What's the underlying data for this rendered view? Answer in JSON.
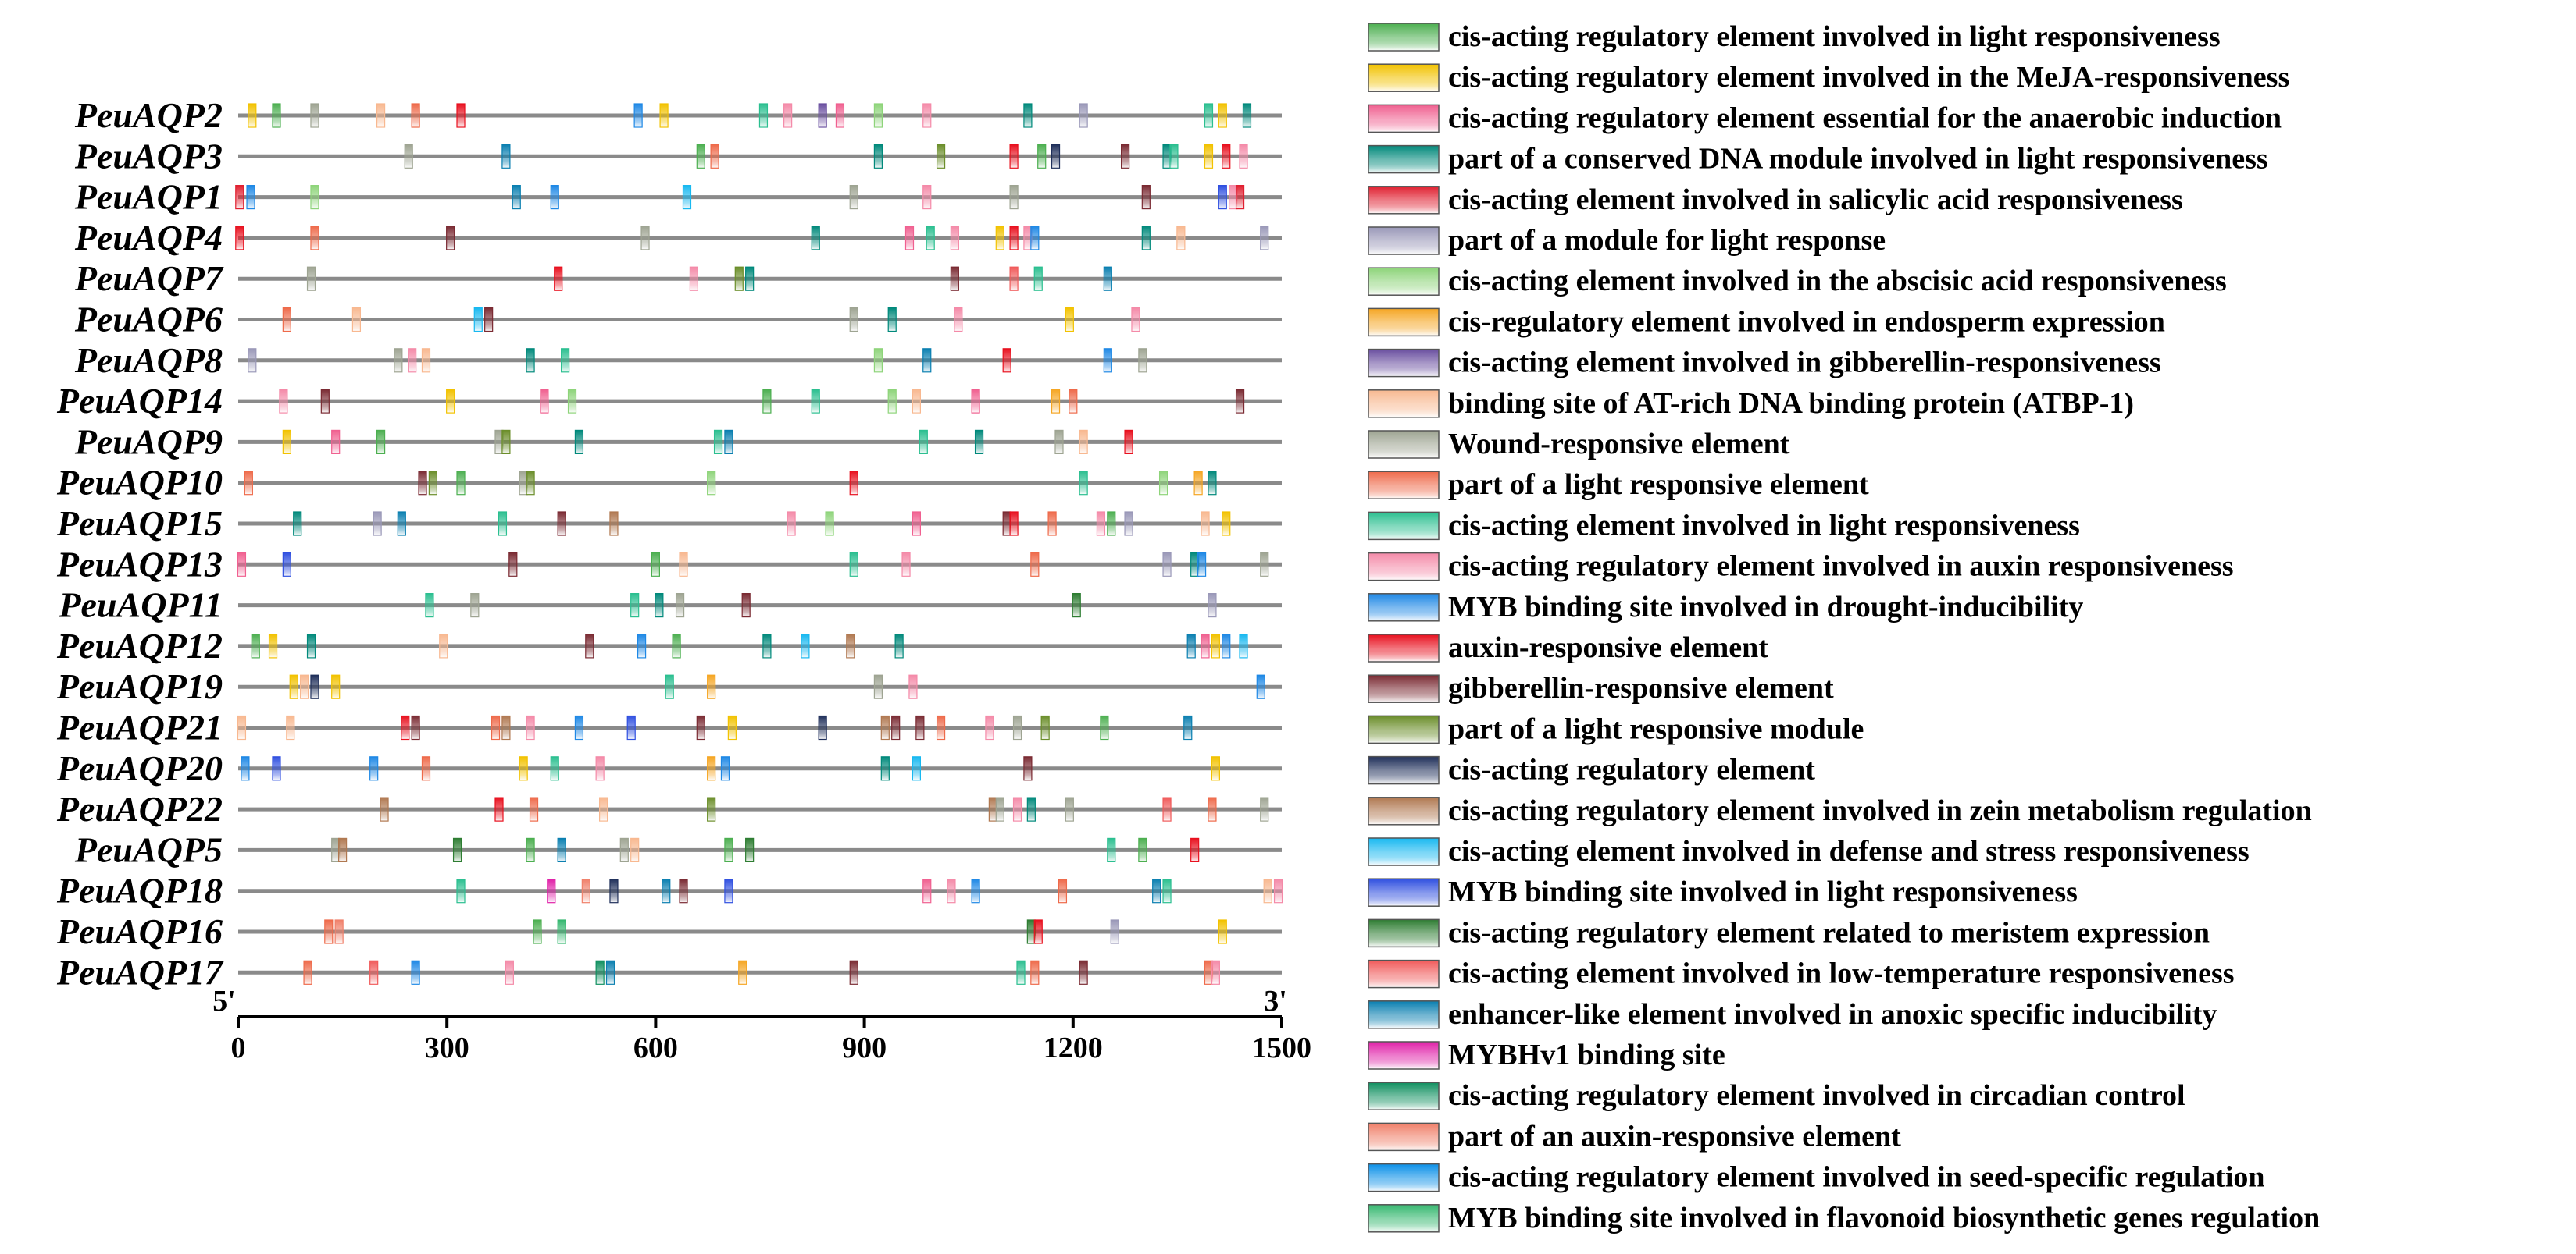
{
  "chart_data": {
    "type": "promoter-element-map",
    "title": "",
    "xlabel": "",
    "ylabel": "",
    "xlim": [
      0,
      1500
    ],
    "xticks": [
      0,
      300,
      600,
      900,
      1200,
      1500
    ],
    "end_labels": {
      "start": "5'",
      "end": "3'"
    },
    "genes": [
      "PeuAQP2",
      "PeuAQP3",
      "PeuAQP1",
      "PeuAQP4",
      "PeuAQP7",
      "PeuAQP6",
      "PeuAQP8",
      "PeuAQP14",
      "PeuAQP9",
      "PeuAQP10",
      "PeuAQP15",
      "PeuAQP13",
      "PeuAQP11",
      "PeuAQP12",
      "PeuAQP19",
      "PeuAQP21",
      "PeuAQP20",
      "PeuAQP22",
      "PeuAQP5",
      "PeuAQP18",
      "PeuAQP16",
      "PeuAQP17"
    ],
    "element_types": [
      {
        "name": "cis-acting regulatory element involved in light responsiveness",
        "color": "#4caf50"
      },
      {
        "name": "cis-acting regulatory element involved in the MeJA-responsiveness",
        "color": "#f2c200"
      },
      {
        "name": "cis-acting regulatory element essential for the anaerobic induction",
        "color": "#f06090"
      },
      {
        "name": "part of a conserved DNA module involved in light responsiveness",
        "color": "#00897b"
      },
      {
        "name": "cis-acting element involved in salicylic acid responsiveness",
        "color": "#e02030"
      },
      {
        "name": "part of a module for light response",
        "color": "#9a98b8"
      },
      {
        "name": "cis-acting element involved in the abscisic acid responsiveness",
        "color": "#8ed47a"
      },
      {
        "name": "cis-regulatory element involved in endosperm expression",
        "color": "#f5a623"
      },
      {
        "name": "cis-acting element involved in gibberellin-responsiveness",
        "color": "#6a4fa0"
      },
      {
        "name": "binding site of AT-rich DNA binding protein (ATBP-1)",
        "color": "#f8b890"
      },
      {
        "name": "Wound-responsive element",
        "color": "#9ea492"
      },
      {
        "name": "part of a light responsive element",
        "color": "#ee6a4a"
      },
      {
        "name": "cis-acting element involved in light responsiveness",
        "color": "#2bbf90"
      },
      {
        "name": "cis-acting regulatory element involved in auxin responsiveness",
        "color": "#f48aa8"
      },
      {
        "name": "MYB binding site involved in drought-inducibility",
        "color": "#1e88e5"
      },
      {
        "name": "auxin-responsive element",
        "color": "#e8101e"
      },
      {
        "name": "gibberellin-responsive element",
        "color": "#7a2a32"
      },
      {
        "name": "part of a light responsive module",
        "color": "#6b8e2a"
      },
      {
        "name": "cis-acting regulatory element",
        "color": "#1f2f5a"
      },
      {
        "name": "cis-acting regulatory element involved in zein metabolism regulation",
        "color": "#b07850"
      },
      {
        "name": "cis-acting element involved in defense and stress responsiveness",
        "color": "#18b8f0"
      },
      {
        "name": "MYB binding site involved in light responsiveness",
        "color": "#3050e0"
      },
      {
        "name": "cis-acting regulatory element related to meristem expression",
        "color": "#2e7d32"
      },
      {
        "name": "cis-acting element involved in low-temperature responsiveness",
        "color": "#f05a5a"
      },
      {
        "name": "enhancer-like element involved in anoxic specific inducibility",
        "color": "#0a7fb0"
      },
      {
        "name": "MYBHv1 binding site",
        "color": "#e020a8"
      },
      {
        "name": "cis-acting regulatory element involved in circadian control",
        "color": "#109060"
      },
      {
        "name": "part of an auxin-responsive element",
        "color": "#f0806a"
      },
      {
        "name": "cis-acting regulatory element involved in seed-specific regulation",
        "color": "#0a90e8"
      },
      {
        "name": "MYB binding site involved in flavonoid biosynthetic genes regulation",
        "color": "#36b870"
      }
    ],
    "elements": {
      "PeuAQP2": [
        [
          20,
          1
        ],
        [
          55,
          0
        ],
        [
          110,
          10
        ],
        [
          205,
          9
        ],
        [
          255,
          11
        ],
        [
          320,
          15
        ],
        [
          575,
          14
        ],
        [
          612,
          1
        ],
        [
          755,
          12
        ],
        [
          790,
          13
        ],
        [
          840,
          8
        ],
        [
          865,
          2
        ],
        [
          920,
          6
        ],
        [
          990,
          13
        ],
        [
          1135,
          3
        ],
        [
          1215,
          5
        ],
        [
          1395,
          12
        ],
        [
          1415,
          1
        ],
        [
          1450,
          3
        ]
      ],
      "PeuAQP3": [
        [
          245,
          10
        ],
        [
          385,
          24
        ],
        [
          665,
          0
        ],
        [
          685,
          11
        ],
        [
          920,
          3
        ],
        [
          1010,
          17
        ],
        [
          1115,
          15
        ],
        [
          1155,
          0
        ],
        [
          1175,
          18
        ],
        [
          1275,
          16
        ],
        [
          1335,
          3
        ],
        [
          1345,
          12
        ],
        [
          1395,
          1
        ],
        [
          1420,
          15
        ],
        [
          1445,
          13
        ]
      ],
      "PeuAQP1": [
        [
          2,
          4
        ],
        [
          18,
          14
        ],
        [
          110,
          6
        ],
        [
          400,
          24
        ],
        [
          455,
          14
        ],
        [
          645,
          20
        ],
        [
          885,
          10
        ],
        [
          990,
          13
        ],
        [
          1115,
          10
        ],
        [
          1305,
          16
        ],
        [
          1415,
          21
        ],
        [
          1430,
          13
        ],
        [
          1440,
          4
        ]
      ],
      "PeuAQP4": [
        [
          2,
          15
        ],
        [
          110,
          11
        ],
        [
          305,
          16
        ],
        [
          585,
          10
        ],
        [
          830,
          3
        ],
        [
          965,
          2
        ],
        [
          995,
          12
        ],
        [
          1030,
          13
        ],
        [
          1095,
          1
        ],
        [
          1115,
          15
        ],
        [
          1135,
          13
        ],
        [
          1145,
          14
        ],
        [
          1305,
          3
        ],
        [
          1355,
          9
        ],
        [
          1475,
          5
        ]
      ],
      "PeuAQP7": [
        [
          105,
          10
        ],
        [
          460,
          15
        ],
        [
          655,
          13
        ],
        [
          720,
          17
        ],
        [
          735,
          3
        ],
        [
          1030,
          16
        ],
        [
          1115,
          23
        ],
        [
          1150,
          12
        ],
        [
          1250,
          24
        ]
      ],
      "PeuAQP6": [
        [
          70,
          11
        ],
        [
          170,
          9
        ],
        [
          345,
          20
        ],
        [
          360,
          16
        ],
        [
          885,
          10
        ],
        [
          940,
          3
        ],
        [
          1035,
          13
        ],
        [
          1195,
          1
        ],
        [
          1290,
          13
        ]
      ],
      "PeuAQP8": [
        [
          20,
          5
        ],
        [
          230,
          10
        ],
        [
          250,
          13
        ],
        [
          270,
          9
        ],
        [
          420,
          3
        ],
        [
          470,
          12
        ],
        [
          920,
          6
        ],
        [
          990,
          24
        ],
        [
          1105,
          15
        ],
        [
          1250,
          14
        ],
        [
          1300,
          10
        ]
      ],
      "PeuAQP14": [
        [
          65,
          13
        ],
        [
          125,
          16
        ],
        [
          305,
          1
        ],
        [
          440,
          2
        ],
        [
          480,
          6
        ],
        [
          760,
          0
        ],
        [
          830,
          12
        ],
        [
          940,
          6
        ],
        [
          975,
          9
        ],
        [
          1060,
          2
        ],
        [
          1175,
          7
        ],
        [
          1200,
          11
        ],
        [
          1440,
          16
        ]
      ],
      "PeuAQP9": [
        [
          70,
          1
        ],
        [
          140,
          2
        ],
        [
          205,
          0
        ],
        [
          375,
          10
        ],
        [
          385,
          17
        ],
        [
          490,
          3
        ],
        [
          690,
          12
        ],
        [
          705,
          24
        ],
        [
          985,
          12
        ],
        [
          1065,
          3
        ],
        [
          1180,
          10
        ],
        [
          1215,
          9
        ],
        [
          1280,
          15
        ]
      ],
      "PeuAQP10": [
        [
          15,
          11
        ],
        [
          265,
          16
        ],
        [
          280,
          17
        ],
        [
          320,
          0
        ],
        [
          410,
          10
        ],
        [
          420,
          17
        ],
        [
          680,
          6
        ],
        [
          885,
          15
        ],
        [
          1215,
          12
        ],
        [
          1330,
          6
        ],
        [
          1380,
          7
        ],
        [
          1400,
          3
        ]
      ],
      "PeuAQP15": [
        [
          85,
          3
        ],
        [
          200,
          5
        ],
        [
          235,
          24
        ],
        [
          380,
          12
        ],
        [
          465,
          16
        ],
        [
          540,
          19
        ],
        [
          795,
          13
        ],
        [
          850,
          6
        ],
        [
          975,
          2
        ],
        [
          1105,
          16
        ],
        [
          1115,
          15
        ],
        [
          1170,
          11
        ],
        [
          1240,
          13
        ],
        [
          1255,
          0
        ],
        [
          1280,
          5
        ],
        [
          1390,
          9
        ],
        [
          1420,
          1
        ]
      ],
      "PeuAQP13": [
        [
          5,
          2
        ],
        [
          70,
          21
        ],
        [
          395,
          16
        ],
        [
          600,
          0
        ],
        [
          640,
          9
        ],
        [
          885,
          12
        ],
        [
          960,
          13
        ],
        [
          1145,
          11
        ],
        [
          1335,
          5
        ],
        [
          1375,
          3
        ],
        [
          1385,
          14
        ],
        [
          1475,
          10
        ]
      ],
      "PeuAQP11": [
        [
          275,
          12
        ],
        [
          340,
          10
        ],
        [
          570,
          12
        ],
        [
          605,
          3
        ],
        [
          635,
          10
        ],
        [
          730,
          16
        ],
        [
          1205,
          22
        ],
        [
          1400,
          5
        ]
      ],
      "PeuAQP12": [
        [
          25,
          0
        ],
        [
          50,
          1
        ],
        [
          105,
          3
        ],
        [
          295,
          9
        ],
        [
          505,
          16
        ],
        [
          580,
          14
        ],
        [
          630,
          0
        ],
        [
          760,
          3
        ],
        [
          815,
          20
        ],
        [
          880,
          19
        ],
        [
          950,
          3
        ],
        [
          1370,
          24
        ],
        [
          1390,
          2
        ],
        [
          1405,
          1
        ],
        [
          1420,
          14
        ],
        [
          1445,
          20
        ]
      ],
      "PeuAQP19": [
        [
          80,
          1
        ],
        [
          95,
          9
        ],
        [
          110,
          18
        ],
        [
          140,
          1
        ],
        [
          620,
          12
        ],
        [
          680,
          7
        ],
        [
          920,
          10
        ],
        [
          970,
          13
        ],
        [
          1470,
          14
        ]
      ],
      "PeuAQP21": [
        [
          5,
          9
        ],
        [
          75,
          9
        ],
        [
          240,
          15
        ],
        [
          255,
          16
        ],
        [
          370,
          11
        ],
        [
          385,
          19
        ],
        [
          420,
          13
        ],
        [
          490,
          14
        ],
        [
          565,
          21
        ],
        [
          665,
          16
        ],
        [
          710,
          1
        ],
        [
          840,
          18
        ],
        [
          930,
          19
        ],
        [
          945,
          16
        ],
        [
          980,
          16
        ],
        [
          1010,
          11
        ],
        [
          1080,
          13
        ],
        [
          1120,
          10
        ],
        [
          1160,
          17
        ],
        [
          1245,
          0
        ],
        [
          1365,
          24
        ]
      ],
      "PeuAQP20": [
        [
          10,
          14
        ],
        [
          55,
          21
        ],
        [
          195,
          14
        ],
        [
          270,
          11
        ],
        [
          410,
          1
        ],
        [
          455,
          12
        ],
        [
          520,
          13
        ],
        [
          680,
          7
        ],
        [
          700,
          14
        ],
        [
          930,
          3
        ],
        [
          975,
          20
        ],
        [
          1135,
          16
        ],
        [
          1405,
          1
        ]
      ],
      "PeuAQP22": [
        [
          210,
          19
        ],
        [
          375,
          15
        ],
        [
          425,
          11
        ],
        [
          525,
          9
        ],
        [
          680,
          17
        ],
        [
          1085,
          19
        ],
        [
          1095,
          10
        ],
        [
          1120,
          13
        ],
        [
          1140,
          3
        ],
        [
          1195,
          10
        ],
        [
          1335,
          23
        ],
        [
          1400,
          11
        ],
        [
          1475,
          10
        ]
      ],
      "PeuAQP5": [
        [
          140,
          10
        ],
        [
          150,
          19
        ],
        [
          315,
          22
        ],
        [
          420,
          0
        ],
        [
          465,
          24
        ],
        [
          555,
          10
        ],
        [
          570,
          9
        ],
        [
          705,
          0
        ],
        [
          735,
          22
        ],
        [
          1255,
          12
        ],
        [
          1300,
          0
        ],
        [
          1375,
          15
        ]
      ],
      "PeuAQP18": [
        [
          320,
          12
        ],
        [
          450,
          25
        ],
        [
          500,
          27
        ],
        [
          540,
          18
        ],
        [
          615,
          24
        ],
        [
          640,
          16
        ],
        [
          705,
          21
        ],
        [
          990,
          2
        ],
        [
          1025,
          13
        ],
        [
          1060,
          14
        ],
        [
          1185,
          11
        ],
        [
          1320,
          24
        ],
        [
          1335,
          12
        ],
        [
          1480,
          9
        ],
        [
          1495,
          13
        ]
      ],
      "PeuAQP16": [
        [
          130,
          11
        ],
        [
          145,
          27
        ],
        [
          430,
          0
        ],
        [
          465,
          29
        ],
        [
          1140,
          22
        ],
        [
          1150,
          15
        ],
        [
          1260,
          5
        ],
        [
          1415,
          1
        ]
      ],
      "PeuAQP17": [
        [
          100,
          11
        ],
        [
          195,
          23
        ],
        [
          255,
          14
        ],
        [
          390,
          13
        ],
        [
          520,
          26
        ],
        [
          535,
          24
        ],
        [
          725,
          7
        ],
        [
          885,
          16
        ],
        [
          1125,
          12
        ],
        [
          1145,
          11
        ],
        [
          1215,
          16
        ],
        [
          1395,
          11
        ],
        [
          1405,
          13
        ]
      ]
    }
  }
}
